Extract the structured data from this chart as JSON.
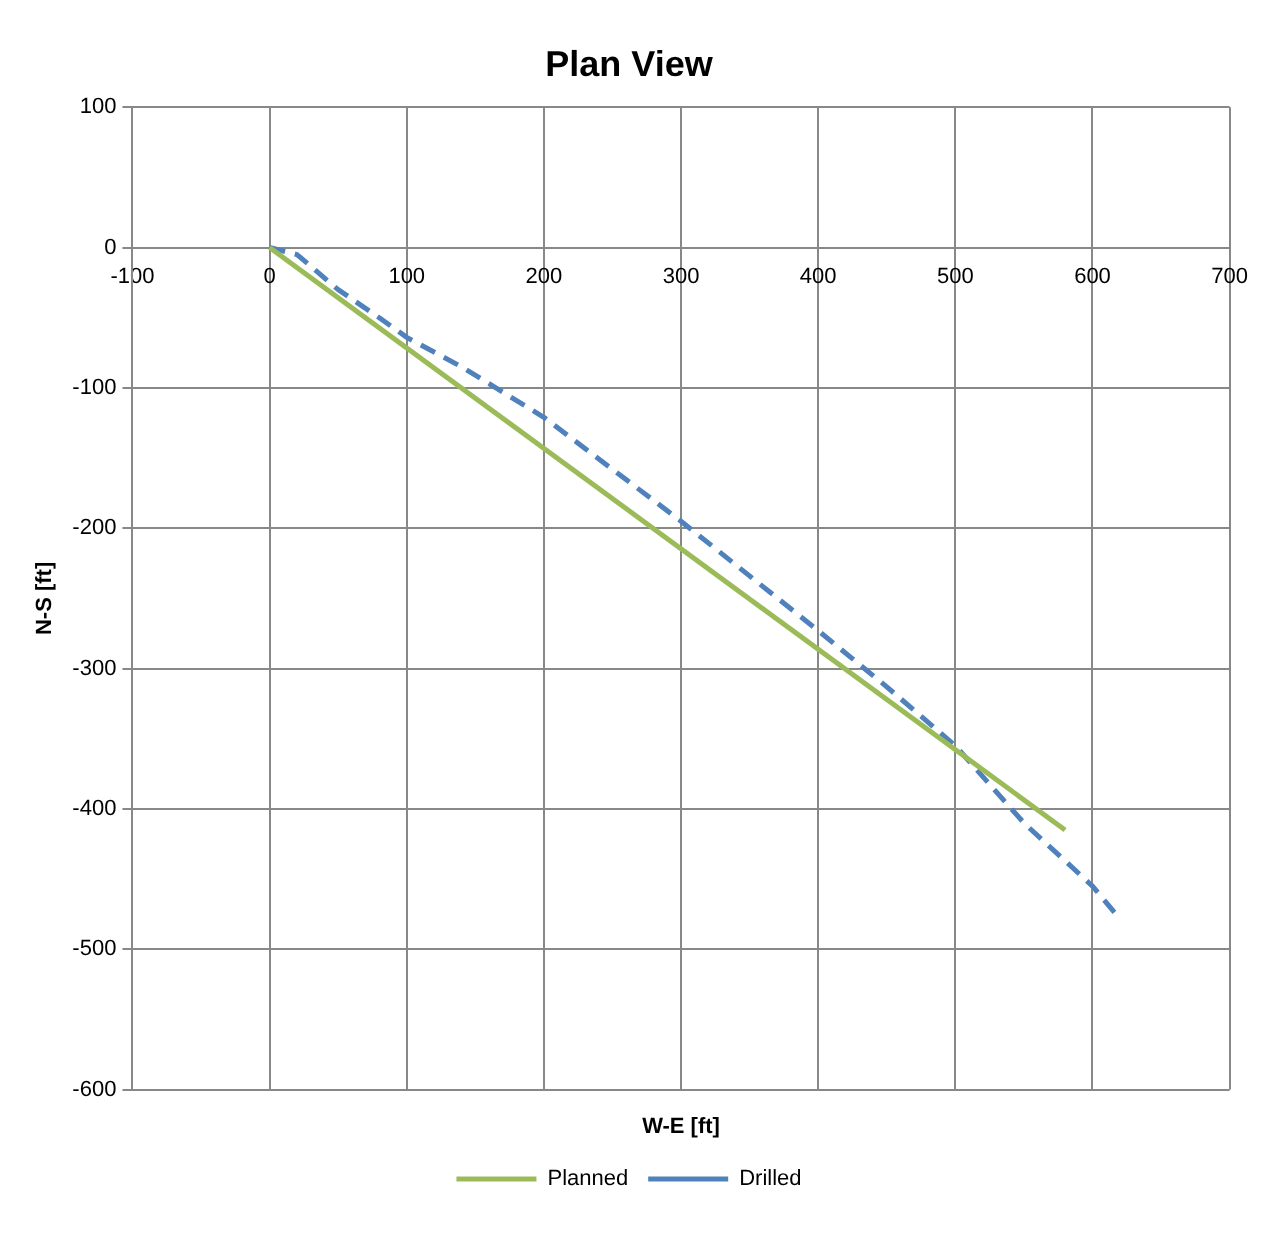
{
  "chart_data": {
    "type": "line",
    "title": "Plan View",
    "xlabel": "W-E [ft]",
    "ylabel": "N-S [ft]",
    "xlim": [
      -100,
      700
    ],
    "xticks": [
      -100,
      0,
      100,
      200,
      300,
      400,
      500,
      600,
      700
    ],
    "ylim": [
      -600,
      100
    ],
    "yticks": [
      -600,
      -500,
      -400,
      -300,
      -200,
      -100,
      0,
      100
    ],
    "grid": true,
    "legend": "bottom",
    "marker": "none",
    "series": [
      {
        "name": "Planned",
        "color": "#9bbb59",
        "line_style": "solid",
        "x": [
          0,
          580
        ],
        "values": [
          0,
          -415
        ]
      },
      {
        "name": "Drilled",
        "color": "#4f81bd",
        "line_style": "dashed",
        "x": [
          0,
          20,
          50,
          80,
          100,
          140,
          200,
          300,
          400,
          450,
          500,
          550,
          600,
          618
        ],
        "values": [
          0,
          -5,
          -30,
          -50,
          -64,
          -85,
          -121,
          -195,
          -273,
          -313,
          -355,
          -410,
          -455,
          -476
        ]
      }
    ]
  }
}
